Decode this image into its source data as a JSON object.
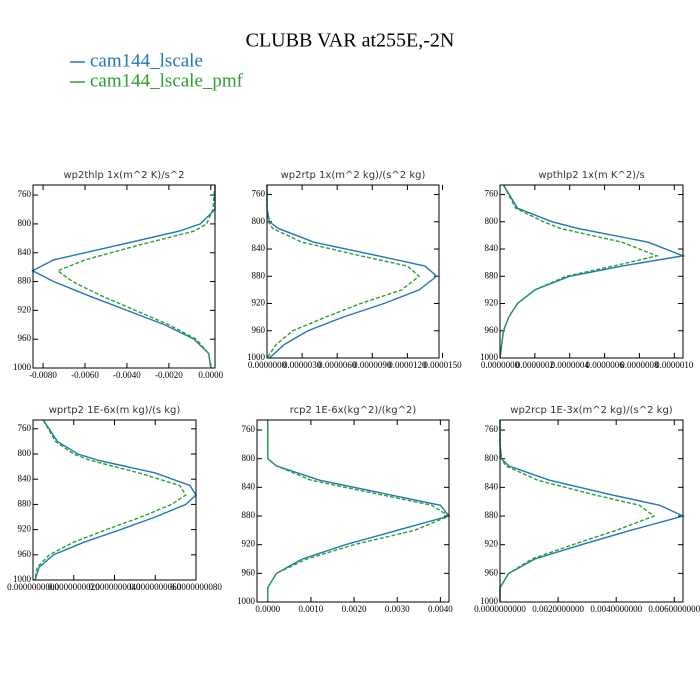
{
  "title": "CLUBB VAR at255E,-2N",
  "chart_data": [
    {
      "type": "line",
      "title": "wp2thlp  1x(m^2 K)/s^2",
      "y": [
        746,
        780,
        800,
        810,
        830,
        850,
        865,
        880,
        900,
        920,
        940,
        960,
        980,
        1000
      ],
      "ylim": [
        1000,
        746
      ],
      "yticks": [
        760,
        800,
        840,
        880,
        920,
        960,
        1000
      ],
      "xlim": [
        -0.00848,
        0.0002
      ],
      "xticks": [
        {
          "value": -0.008,
          "label": "-0.0080"
        },
        {
          "value": -0.006,
          "label": "-0.0060"
        },
        {
          "value": -0.004,
          "label": "-0.0040"
        },
        {
          "value": -0.002,
          "label": "-0.0020"
        },
        {
          "value": 0,
          "label": "0.0000"
        }
      ],
      "series": [
        {
          "name": "cam144_lscale",
          "color": "#1f77b4",
          "dashed": false,
          "values": [
            0.0002,
            0.0002,
            -0.0005,
            -0.0015,
            -0.0045,
            -0.0075,
            -0.0085,
            -0.0075,
            -0.0058,
            -0.004,
            -0.0022,
            -0.0008,
            -0.0001,
            0
          ]
        },
        {
          "name": "cam144_lscale_pmf",
          "color": "#2ca02c",
          "dashed": true,
          "values": [
            0.0002,
            0.0001,
            -0.0002,
            -0.0008,
            -0.0035,
            -0.006,
            -0.0073,
            -0.0066,
            -0.0052,
            -0.0036,
            -0.002,
            -0.0007,
            -0.0001,
            0
          ]
        }
      ]
    },
    {
      "type": "line",
      "title": "wp2rtp  1x(m^2 kg)/(s^2 kg)",
      "y": [
        746,
        780,
        800,
        810,
        830,
        850,
        865,
        880,
        900,
        920,
        940,
        960,
        980,
        1000
      ],
      "ylim": [
        1000,
        746
      ],
      "yticks": [
        760,
        800,
        840,
        880,
        920,
        960,
        1000
      ],
      "xlim": [
        0,
        1.47e-05
      ],
      "xticks": [
        {
          "value": 0,
          "label": "0.0000000"
        },
        {
          "value": 3e-06,
          "label": "0.0000030"
        },
        {
          "value": 6e-06,
          "label": "0.0000060"
        },
        {
          "value": 9e-06,
          "label": "0.0000090"
        },
        {
          "value": 1.2e-05,
          "label": "0.0000120"
        },
        {
          "value": 1.5e-05,
          "label": "0.0000150"
        }
      ],
      "series": [
        {
          "name": "cam144_lscale",
          "color": "#1f77b4",
          "dashed": false,
          "values": [
            0,
            0,
            2e-07,
            1e-06,
            4e-06,
            9.5e-06,
            1.35e-05,
            1.45e-05,
            1.3e-05,
            1e-05,
            6.5e-06,
            3.5e-06,
            1.5e-06,
            2e-07
          ]
        },
        {
          "name": "cam144_lscale_pmf",
          "color": "#2ca02c",
          "dashed": true,
          "values": [
            0,
            0,
            1e-07,
            5e-07,
            3e-06,
            8e-06,
            1.2e-05,
            1.3e-05,
            1.15e-05,
            8e-06,
            5e-06,
            2.2e-06,
            8e-07,
            0
          ]
        }
      ]
    },
    {
      "type": "line",
      "title": "wpthlp2  1x(m K^2)/s",
      "y": [
        746,
        780,
        800,
        810,
        830,
        850,
        865,
        880,
        900,
        920,
        940,
        960,
        980,
        1000
      ],
      "ylim": [
        1000,
        746
      ],
      "yticks": [
        760,
        800,
        840,
        880,
        920,
        960,
        1000
      ],
      "xlim": [
        0,
        1.05e-06
      ],
      "xticks": [
        {
          "value": 0,
          "label": "0.0000000"
        },
        {
          "value": 2e-07,
          "label": "0.0000002"
        },
        {
          "value": 4e-07,
          "label": "0.0000004"
        },
        {
          "value": 6e-07,
          "label": "0.0000006"
        },
        {
          "value": 8e-07,
          "label": "0.0000008"
        },
        {
          "value": 1e-06,
          "label": "0.0000010"
        }
      ],
      "series": [
        {
          "name": "cam144_lscale",
          "color": "#1f77b4",
          "dashed": false,
          "values": [
            2e-08,
            1e-07,
            3e-07,
            4.5e-07,
            8.5e-07,
            1.05e-06,
            7e-07,
            4e-07,
            2e-07,
            1e-07,
            5e-08,
            2e-08,
            1e-08,
            0
          ]
        },
        {
          "name": "cam144_lscale_pmf",
          "color": "#2ca02c",
          "dashed": true,
          "values": [
            2e-08,
            9e-08,
            2.5e-07,
            3.5e-07,
            7e-07,
            9e-07,
            6.5e-07,
            3.8e-07,
            2e-07,
            1e-07,
            5e-08,
            2e-08,
            1e-08,
            0
          ]
        }
      ]
    },
    {
      "type": "line",
      "title": "wprtp2  1E-6x(m kg)/(s kg)",
      "y": [
        746,
        780,
        800,
        810,
        830,
        850,
        865,
        880,
        900,
        920,
        940,
        960,
        980,
        1000
      ],
      "ylim": [
        1000,
        746
      ],
      "yticks": [
        760,
        800,
        840,
        880,
        920,
        960,
        1000
      ],
      "xlim": [
        0,
        8e-09
      ],
      "xticks": [
        {
          "value": 0,
          "label": "0.0000000000"
        },
        {
          "value": 2e-09,
          "label": "0.0000000020"
        },
        {
          "value": 4e-09,
          "label": "0.0000000040"
        },
        {
          "value": 6e-09,
          "label": "0.0000000060"
        },
        {
          "value": 8e-09,
          "label": "0.0000000080"
        }
      ],
      "series": [
        {
          "name": "cam144_lscale",
          "color": "#1f77b4",
          "dashed": false,
          "values": [
            5e-10,
            1.2e-09,
            2.2e-09,
            3.2e-09,
            6e-09,
            7.7e-09,
            8e-09,
            7.5e-09,
            6e-09,
            4.3e-09,
            2.5e-09,
            1e-09,
            3e-10,
            1e-10
          ]
        },
        {
          "name": "cam144_lscale_pmf",
          "color": "#2ca02c",
          "dashed": true,
          "values": [
            5e-10,
            1.1e-09,
            2e-09,
            2.8e-09,
            5.2e-09,
            7.2e-09,
            7.5e-09,
            6.8e-09,
            5.3e-09,
            3.6e-09,
            2e-09,
            8e-10,
            2e-10,
            1e-10
          ]
        }
      ]
    },
    {
      "type": "line",
      "title": "rcp2  1E-6x(kg^2)/(kg^2)",
      "y": [
        746,
        780,
        800,
        810,
        830,
        850,
        865,
        880,
        900,
        920,
        940,
        960,
        980,
        1000
      ],
      "ylim": [
        1000,
        746
      ],
      "yticks": [
        760,
        800,
        840,
        880,
        920,
        960,
        1000
      ],
      "xlim": [
        -0.00025,
        0.0042
      ],
      "xticks": [
        {
          "value": 0,
          "label": "0.0000"
        },
        {
          "value": 0.001,
          "label": "0.0010"
        },
        {
          "value": 0.002,
          "label": "0.0020"
        },
        {
          "value": 0.003,
          "label": "0.0030"
        },
        {
          "value": 0.004,
          "label": "0.0040"
        }
      ],
      "series": [
        {
          "name": "cam144_lscale",
          "color": "#1f77b4",
          "dashed": false,
          "values": [
            0,
            0,
            0,
            0.0002,
            0.0012,
            0.0028,
            0.004,
            0.0042,
            0.003,
            0.0018,
            0.0008,
            0.0002,
            0,
            0
          ]
        },
        {
          "name": "cam144_lscale_pmf",
          "color": "#2ca02c",
          "dashed": true,
          "values": [
            0,
            0,
            0,
            0.0002,
            0.001,
            0.0026,
            0.0038,
            0.0042,
            0.0034,
            0.002,
            0.0009,
            0.0002,
            0,
            0
          ]
        }
      ]
    },
    {
      "type": "line",
      "title": "wp2rcp  1E-3x(m^2 kg)/(s^2 kg)",
      "y": [
        746,
        780,
        800,
        810,
        830,
        850,
        865,
        880,
        900,
        920,
        940,
        960,
        980,
        1000
      ],
      "ylim": [
        1000,
        746
      ],
      "yticks": [
        760,
        800,
        840,
        880,
        920,
        960,
        1000
      ],
      "xlim": [
        0,
        0.0063
      ],
      "xticks": [
        {
          "value": 0,
          "label": "0.0000000000"
        },
        {
          "value": 0.002,
          "label": "0.0020000000"
        },
        {
          "value": 0.004,
          "label": "0.0040000000"
        },
        {
          "value": 0.006,
          "label": "0.0060000000"
        }
      ],
      "series": [
        {
          "name": "cam144_lscale",
          "color": "#1f77b4",
          "dashed": false,
          "values": [
            0,
            0,
            5e-05,
            0.0003,
            0.0017,
            0.0038,
            0.0055,
            0.0063,
            0.0045,
            0.0028,
            0.0012,
            0.0003,
            0,
            0
          ]
        },
        {
          "name": "cam144_lscale_pmf",
          "color": "#2ca02c",
          "dashed": true,
          "values": [
            0,
            0,
            5e-05,
            0.0002,
            0.0013,
            0.0032,
            0.0048,
            0.0053,
            0.004,
            0.0025,
            0.0011,
            0.0003,
            0,
            0
          ]
        }
      ]
    }
  ]
}
